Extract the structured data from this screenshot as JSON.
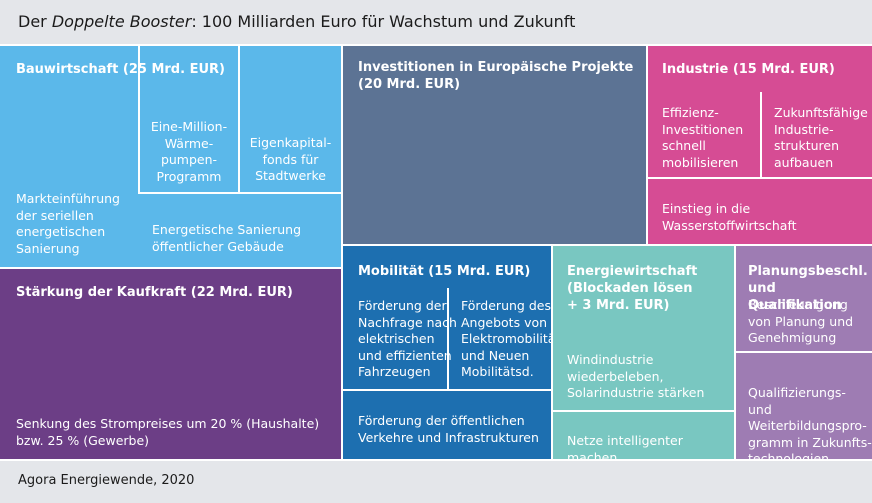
{
  "title": {
    "prefix": "Der ",
    "emphasis": "Doppelte Booster",
    "suffix": ": 100 Milliarden Euro für Wachstum und Zukunft"
  },
  "source": "Agora Energiewende, 2020",
  "colors": {
    "bauwirtschaft": "#5bb8ea",
    "europa": "#5c7394",
    "industrie": "#d64c94",
    "kaufkraft": "#6c3e86",
    "mobilitaet": "#1d6fb0",
    "energie": "#79c7c1",
    "planung": "#9e7cb3"
  },
  "blocks": {
    "bau": {
      "title": "Bauwirtschaft (25 Mrd. EUR)",
      "items": [
        "Eine-Million-\nWärme-\npumpen-\nProgramm",
        "Eigenkapital-\nfonds für\nStadtwerke",
        "Markteinführung\nder seriellen\nenergetischen\nSanierung",
        "Energetische Sanierung\nöffentlicher Gebäude"
      ]
    },
    "eu": {
      "title": "Investitionen in Europäische Projekte\n(20 Mrd. EUR)"
    },
    "ind": {
      "title": "Industrie (15 Mrd. EUR)",
      "items": [
        "Effizienz-\nInvestitionen\nschnell\nmobilisieren",
        "Zukunftsfähige\nIndustrie-\nstrukturen\naufbauen",
        "Einstieg in die\nWasserstoffwirtschaft"
      ]
    },
    "kauf": {
      "title": "Stärkung der Kaufkraft (22 Mrd. EUR)",
      "items": [
        "Senkung des Strompreises um 20 % (Haushalte)\nbzw. 25 % (Gewerbe)"
      ]
    },
    "mob": {
      "title": "Mobilität (15 Mrd. EUR)",
      "items": [
        "Förderung der\nNachfrage nach\nelektrischen\nund effizienten\nFahrzeugen",
        "Förderung des\nAngebots von\nElektromobilität\nund Neuen\nMobilitätsd.",
        "Förderung der öffentlichen\nVerkehre und Infrastrukturen"
      ]
    },
    "en": {
      "title": "Energiewirtschaft\n(Blockaden lösen\n+ 3 Mrd. EUR)",
      "items": [
        "Windindustrie\nwiederbeleben,\nSolarindustrie stärken",
        "Netze intelligenter machen"
      ]
    },
    "plan": {
      "title": "Planungsbeschl.\nund Qualifikation",
      "items": [
        "Beschleunigung\nvon Planung und\nGenehmigung",
        "Qualifizierungs- und\nWeiterbildungspro-\ngramm in Zukunfts-\ntechnologien"
      ]
    }
  }
}
